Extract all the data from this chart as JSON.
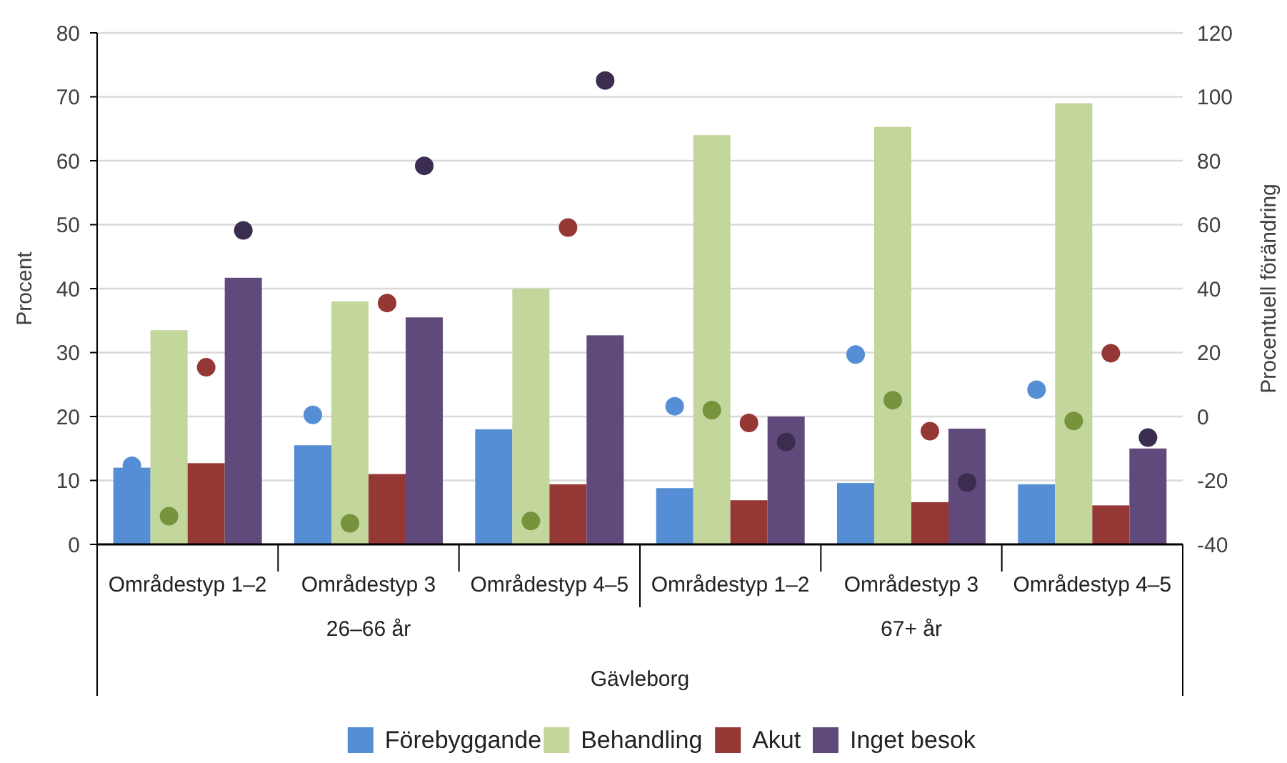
{
  "chart_data": {
    "type": "bar",
    "categories": [
      "Områdestyp 1–2",
      "Områdestyp 3",
      "Områdestyp 4–5",
      "Områdestyp 1–2",
      "Områdestyp 3",
      "Områdestyp 4–5"
    ],
    "ylabel": "Procent",
    "y2label": "Procentuell förändring",
    "ylim": [
      0,
      80
    ],
    "yticks": [
      0,
      10,
      20,
      30,
      40,
      50,
      60,
      70,
      80
    ],
    "y2lim": [
      -40,
      120
    ],
    "y2ticks": [
      -40,
      -20,
      0,
      20,
      40,
      60,
      80,
      100,
      120
    ],
    "grid": "y",
    "legend": "bottom",
    "annotations": [
      "26–66 år",
      "67+ år",
      "Gävleborg"
    ],
    "series": [
      {
        "name": "Förebyggande",
        "color": "#558ed5",
        "values": [
          12,
          15.5,
          18,
          8.8,
          9.6,
          9.4
        ]
      },
      {
        "name": "Behandling",
        "color": "#c3d69b",
        "values": [
          33.5,
          38,
          40,
          64,
          65.3,
          69
        ]
      },
      {
        "name": "Akut",
        "color": "#953735",
        "values": [
          12.7,
          11,
          9.4,
          6.9,
          6.6,
          6.1
        ]
      },
      {
        "name": "Inget besok",
        "color": "#604a7b",
        "values": [
          41.7,
          35.5,
          32.7,
          20,
          18.1,
          15
        ]
      },
      {
        "type": "scatter",
        "axis": "y2",
        "marker": "circle",
        "color": "#558ed5",
        "values": [
          -15.4,
          0.5,
          null,
          3.2,
          19.4,
          8.4
        ]
      },
      {
        "type": "scatter",
        "axis": "y2",
        "marker": "circle",
        "color": "#77933c",
        "values": [
          -31.2,
          -33.4,
          -32.7,
          2,
          5.1,
          -1.4
        ]
      },
      {
        "type": "scatter",
        "axis": "y2",
        "marker": "circle",
        "color": "#953735",
        "values": [
          15.4,
          35.5,
          59.1,
          -2,
          -4.6,
          19.8
        ]
      },
      {
        "type": "scatter",
        "axis": "y2",
        "marker": "circle",
        "color": "#3b2d50",
        "values": [
          58.2,
          78.4,
          105.1,
          -8,
          -20.6,
          -6.6
        ]
      }
    ]
  }
}
